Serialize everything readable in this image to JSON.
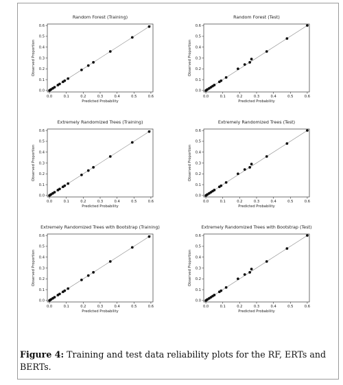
{
  "caption": {
    "lead": "Figure 4:",
    "text": " Training and test data reliability plots for the RF, ERTs and BERTs."
  },
  "colors": {
    "points": "#111111",
    "diagonal": "#888888",
    "axes": "#333333"
  },
  "chart_data": [
    {
      "type": "scatter",
      "title": "Random Forest (Training)",
      "xlabel": "Predicted Probability",
      "ylabel": "Observed Proportion",
      "xlim": [
        0,
        0.6
      ],
      "ylim": [
        0,
        0.6
      ],
      "xticks": [
        "0.0",
        "0.1",
        "0.2",
        "0.3",
        "0.4",
        "0.5",
        "0.6"
      ],
      "yticks": [
        "0.0",
        "0.1",
        "0.2",
        "0.3",
        "0.4",
        "0.5",
        "0.6"
      ],
      "diagonal": true,
      "grid": false,
      "x": [
        0.0,
        0.005,
        0.01,
        0.02,
        0.03,
        0.05,
        0.06,
        0.08,
        0.09,
        0.11,
        0.19,
        0.23,
        0.26,
        0.36,
        0.49,
        0.59
      ],
      "y": [
        0.0,
        0.005,
        0.01,
        0.02,
        0.03,
        0.05,
        0.06,
        0.08,
        0.09,
        0.11,
        0.19,
        0.23,
        0.26,
        0.36,
        0.49,
        0.59
      ]
    },
    {
      "type": "scatter",
      "title": "Random Forest (Test)",
      "xlabel": "Predicted Probability",
      "ylabel": "Observed Proportion",
      "xlim": [
        0,
        0.6
      ],
      "ylim": [
        0,
        0.6
      ],
      "xticks": [
        "0.0",
        "0.1",
        "0.2",
        "0.3",
        "0.4",
        "0.5",
        "0.6"
      ],
      "yticks": [
        "0.0",
        "0.1",
        "0.2",
        "0.3",
        "0.4",
        "0.5",
        "0.6"
      ],
      "diagonal": true,
      "grid": false,
      "x": [
        0.0,
        0.005,
        0.01,
        0.02,
        0.03,
        0.04,
        0.05,
        0.08,
        0.09,
        0.12,
        0.19,
        0.23,
        0.26,
        0.27,
        0.36,
        0.48,
        0.6
      ],
      "y": [
        0.0,
        0.005,
        0.01,
        0.02,
        0.03,
        0.04,
        0.05,
        0.08,
        0.09,
        0.12,
        0.2,
        0.24,
        0.26,
        0.29,
        0.36,
        0.48,
        0.6
      ]
    },
    {
      "type": "scatter",
      "title": "Extremely Randomized Trees (Training)",
      "xlabel": "Predicted Probability",
      "ylabel": "Observed Proportion",
      "xlim": [
        0,
        0.6
      ],
      "ylim": [
        0,
        0.6
      ],
      "xticks": [
        "0.0",
        "0.1",
        "0.2",
        "0.3",
        "0.4",
        "0.5",
        "0.6"
      ],
      "yticks": [
        "0.0",
        "0.1",
        "0.2",
        "0.3",
        "0.4",
        "0.5",
        "0.6"
      ],
      "diagonal": true,
      "grid": false,
      "x": [
        0.0,
        0.005,
        0.01,
        0.02,
        0.03,
        0.05,
        0.06,
        0.08,
        0.09,
        0.11,
        0.19,
        0.23,
        0.26,
        0.36,
        0.49,
        0.59
      ],
      "y": [
        0.0,
        0.005,
        0.01,
        0.02,
        0.03,
        0.05,
        0.06,
        0.08,
        0.09,
        0.11,
        0.19,
        0.23,
        0.26,
        0.36,
        0.49,
        0.59
      ]
    },
    {
      "type": "scatter",
      "title": "Extremely Randomized Trees (Test)",
      "xlabel": "Predicted Probability",
      "ylabel": "Observed Proportion",
      "xlim": [
        0,
        0.6
      ],
      "ylim": [
        0,
        0.6
      ],
      "xticks": [
        "0.0",
        "0.1",
        "0.2",
        "0.3",
        "0.4",
        "0.5",
        "0.6"
      ],
      "yticks": [
        "0.0",
        "0.1",
        "0.2",
        "0.3",
        "0.4",
        "0.5",
        "0.6"
      ],
      "diagonal": true,
      "grid": false,
      "x": [
        0.0,
        0.005,
        0.01,
        0.02,
        0.03,
        0.04,
        0.05,
        0.08,
        0.09,
        0.12,
        0.19,
        0.23,
        0.26,
        0.27,
        0.36,
        0.48,
        0.6
      ],
      "y": [
        0.0,
        0.005,
        0.01,
        0.02,
        0.03,
        0.04,
        0.05,
        0.08,
        0.09,
        0.12,
        0.2,
        0.24,
        0.26,
        0.29,
        0.36,
        0.48,
        0.6
      ]
    },
    {
      "type": "scatter",
      "title": "Extremely Randomized Trees with Bootstrap (Training)",
      "xlabel": "Predicted Probability",
      "ylabel": "Observed Proportion",
      "xlim": [
        0,
        0.6
      ],
      "ylim": [
        0,
        0.6
      ],
      "xticks": [
        "0.0",
        "0.1",
        "0.2",
        "0.3",
        "0.4",
        "0.5",
        "0.6"
      ],
      "yticks": [
        "0.0",
        "0.1",
        "0.2",
        "0.3",
        "0.4",
        "0.5",
        "0.6"
      ],
      "diagonal": true,
      "grid": false,
      "x": [
        0.0,
        0.005,
        0.01,
        0.02,
        0.03,
        0.05,
        0.06,
        0.08,
        0.09,
        0.11,
        0.19,
        0.23,
        0.26,
        0.36,
        0.49,
        0.59
      ],
      "y": [
        0.0,
        0.005,
        0.01,
        0.02,
        0.03,
        0.05,
        0.06,
        0.08,
        0.09,
        0.11,
        0.19,
        0.23,
        0.26,
        0.36,
        0.49,
        0.59
      ]
    },
    {
      "type": "scatter",
      "title": "Extremely Randomized Trees with Bootstrap (Test)",
      "xlabel": "Predicted Probability",
      "ylabel": "Observed Proportion",
      "xlim": [
        0,
        0.6
      ],
      "ylim": [
        0,
        0.6
      ],
      "xticks": [
        "0.0",
        "0.1",
        "0.2",
        "0.3",
        "0.4",
        "0.5",
        "0.6"
      ],
      "yticks": [
        "0.0",
        "0.1",
        "0.2",
        "0.3",
        "0.4",
        "0.5",
        "0.6"
      ],
      "diagonal": true,
      "grid": false,
      "x": [
        0.0,
        0.005,
        0.01,
        0.02,
        0.03,
        0.04,
        0.05,
        0.08,
        0.09,
        0.12,
        0.19,
        0.23,
        0.26,
        0.27,
        0.36,
        0.48,
        0.6
      ],
      "y": [
        0.0,
        0.005,
        0.01,
        0.02,
        0.03,
        0.04,
        0.05,
        0.08,
        0.09,
        0.12,
        0.2,
        0.24,
        0.26,
        0.29,
        0.36,
        0.48,
        0.6
      ]
    }
  ]
}
